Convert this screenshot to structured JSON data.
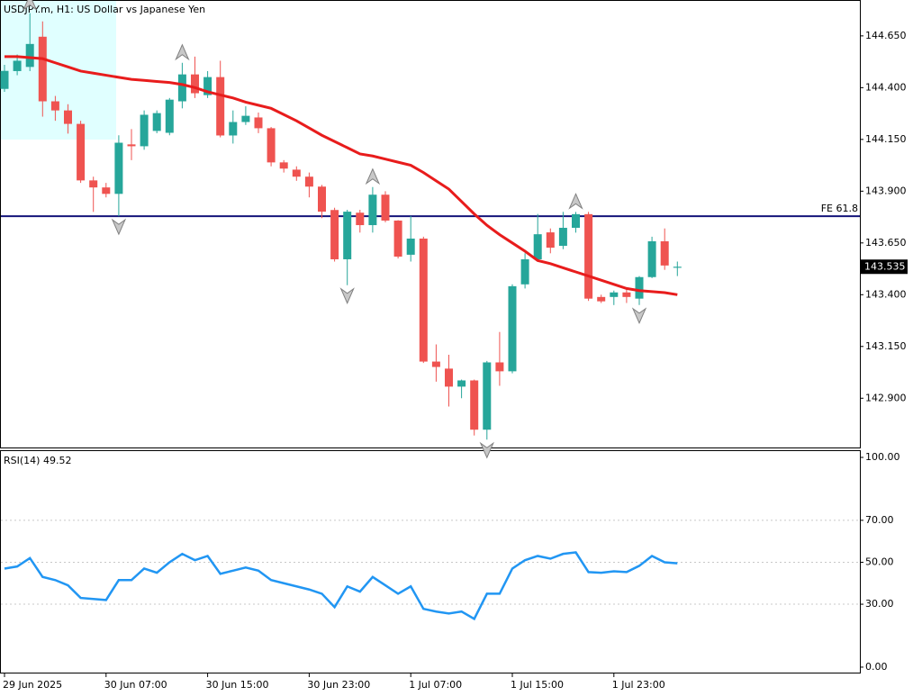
{
  "chart_data": [
    {
      "type": "candlestick",
      "title": "USDJPY.m, H1:  US Dollar vs Japanese Yen",
      "categories": [
        "29 Jun 2025",
        null,
        null,
        null,
        null,
        null,
        null,
        null,
        "30 Jun 07:00",
        null,
        null,
        null,
        null,
        null,
        null,
        null,
        "30 Jun 15:00",
        null,
        null,
        null,
        null,
        null,
        null,
        null,
        "30 Jun 23:00",
        null,
        null,
        null,
        null,
        null,
        null,
        null,
        "1 Jul 07:00",
        null,
        null,
        null,
        null,
        null,
        null,
        null,
        "1 Jul 15:00",
        null,
        null,
        null,
        null,
        null,
        null,
        null,
        "1 Jul 23:00",
        null,
        null,
        null,
        null,
        null
      ],
      "open": [
        144.394,
        144.48,
        144.5,
        144.646,
        144.334,
        144.29,
        144.225,
        143.952,
        143.918,
        143.887,
        144.126,
        144.117,
        144.191,
        144.182,
        144.334,
        144.464,
        144.364,
        144.451,
        144.169,
        144.234,
        144.256,
        144.204,
        144.039,
        144.004,
        143.97,
        143.922,
        143.809,
        143.571,
        143.796,
        143.736,
        143.883,
        143.758,
        143.593,
        143.671,
        143.077,
        143.043,
        142.956,
        142.986,
        142.748,
        143.073,
        143.03,
        143.45,
        143.571,
        143.701,
        143.636,
        143.723,
        143.789,
        143.389,
        143.389,
        143.411,
        143.381,
        143.485,
        143.658,
        143.53
      ],
      "high": [
        144.51,
        144.56,
        144.76,
        144.72,
        144.36,
        144.32,
        144.24,
        143.97,
        143.94,
        144.17,
        144.2,
        144.29,
        144.29,
        144.35,
        144.52,
        144.55,
        144.48,
        144.53,
        144.29,
        144.31,
        144.28,
        144.21,
        144.05,
        144.02,
        143.99,
        143.93,
        143.82,
        143.81,
        143.81,
        143.92,
        143.9,
        143.76,
        143.78,
        143.68,
        143.16,
        143.11,
        142.99,
        142.99,
        143.08,
        143.22,
        143.45,
        143.6,
        143.79,
        143.72,
        143.8,
        143.8,
        143.8,
        143.4,
        143.42,
        143.43,
        143.49,
        143.68,
        143.72,
        143.56
      ],
      "low": [
        144.38,
        144.46,
        144.48,
        144.26,
        144.24,
        144.178,
        143.94,
        143.8,
        143.87,
        143.779,
        144.05,
        144.1,
        144.18,
        144.17,
        144.3,
        144.35,
        144.35,
        144.16,
        144.13,
        144.22,
        144.18,
        144.02,
        143.99,
        143.95,
        143.87,
        143.77,
        143.56,
        143.446,
        143.7,
        143.7,
        143.75,
        143.575,
        143.56,
        143.07,
        142.98,
        142.86,
        142.9,
        142.72,
        142.7,
        142.96,
        143.02,
        143.43,
        143.56,
        143.6,
        143.62,
        143.7,
        143.37,
        143.36,
        143.35,
        143.36,
        143.35,
        143.48,
        143.52,
        143.49
      ],
      "close": [
        144.481,
        144.53,
        144.611,
        144.334,
        144.29,
        144.225,
        143.952,
        143.918,
        143.887,
        144.134,
        144.117,
        144.269,
        144.277,
        144.342,
        144.464,
        144.373,
        144.451,
        144.169,
        144.234,
        144.264,
        144.204,
        144.039,
        144.009,
        143.97,
        143.922,
        143.801,
        143.571,
        143.801,
        143.736,
        143.883,
        143.758,
        143.584,
        143.671,
        143.077,
        143.051,
        142.956,
        142.986,
        142.748,
        143.073,
        143.03,
        143.441,
        143.571,
        143.692,
        143.627,
        143.723,
        143.789,
        143.381,
        143.368,
        143.411,
        143.389,
        143.485,
        143.658,
        143.541,
        143.535
      ],
      "up_color": "#26a69a",
      "down_color": "#ef5350",
      "ma": {
        "color": "#e81c1c",
        "values": [
          144.55,
          144.55,
          144.545,
          144.54,
          144.52,
          144.5,
          144.48,
          144.47,
          144.46,
          144.45,
          144.44,
          144.435,
          144.43,
          144.425,
          144.415,
          144.4,
          144.38,
          144.365,
          144.35,
          144.33,
          144.315,
          144.3,
          144.27,
          144.24,
          144.205,
          144.17,
          144.14,
          144.11,
          144.08,
          144.07,
          144.055,
          144.04,
          144.025,
          143.99,
          143.95,
          143.91,
          143.85,
          143.79,
          143.735,
          143.69,
          143.65,
          143.61,
          143.565,
          143.55,
          143.53,
          143.51,
          143.49,
          143.47,
          143.45,
          143.43,
          143.42,
          143.415,
          143.41,
          143.4
        ]
      },
      "hline": {
        "label": "FE 61.8",
        "value": 143.779,
        "color": "#14147a"
      },
      "fractals_up": [
        2,
        14,
        29,
        45
      ],
      "fractals_down": [
        9,
        27,
        38,
        50
      ],
      "ylim": [
        142.662,
        144.819
      ],
      "yticks": [
        {
          "value": 144.65,
          "label": "144.650"
        },
        {
          "value": 144.4,
          "label": "144.400"
        },
        {
          "value": 144.15,
          "label": "144.150"
        },
        {
          "value": 143.9,
          "label": "143.900"
        },
        {
          "value": 143.65,
          "label": "143.650"
        },
        {
          "value": 143.4,
          "label": "143.400"
        },
        {
          "value": 143.15,
          "label": "143.150"
        },
        {
          "value": 142.9,
          "label": "142.900"
        }
      ]
    },
    {
      "type": "line",
      "title": "RSI(14) 49.52",
      "color": "#2196f3",
      "values": [
        47,
        48,
        52,
        43,
        41.5,
        39,
        33,
        32.5,
        32,
        41.5,
        41.5,
        47,
        45,
        50,
        54,
        51,
        53,
        44.5,
        46,
        47.5,
        46,
        41.5,
        40,
        38.5,
        37,
        35,
        28.6,
        38.5,
        36,
        43,
        39,
        35,
        38.5,
        27.8,
        26.5,
        25.6,
        26.5,
        23,
        35,
        35,
        47,
        51,
        53,
        51.7,
        54,
        54.7,
        45.3,
        45,
        45.7,
        45.3,
        48.3,
        53,
        50,
        49.52
      ],
      "levels": [
        70,
        50,
        30
      ],
      "ylim": [
        -2.6,
        103
      ],
      "yticks": [
        {
          "value": 100,
          "label": "100.00"
        },
        {
          "value": 70,
          "label": "70.00"
        },
        {
          "value": 50,
          "label": "50.00"
        },
        {
          "value": 30,
          "label": "30.00"
        },
        {
          "value": 0,
          "label": "0.00"
        }
      ]
    }
  ]
}
